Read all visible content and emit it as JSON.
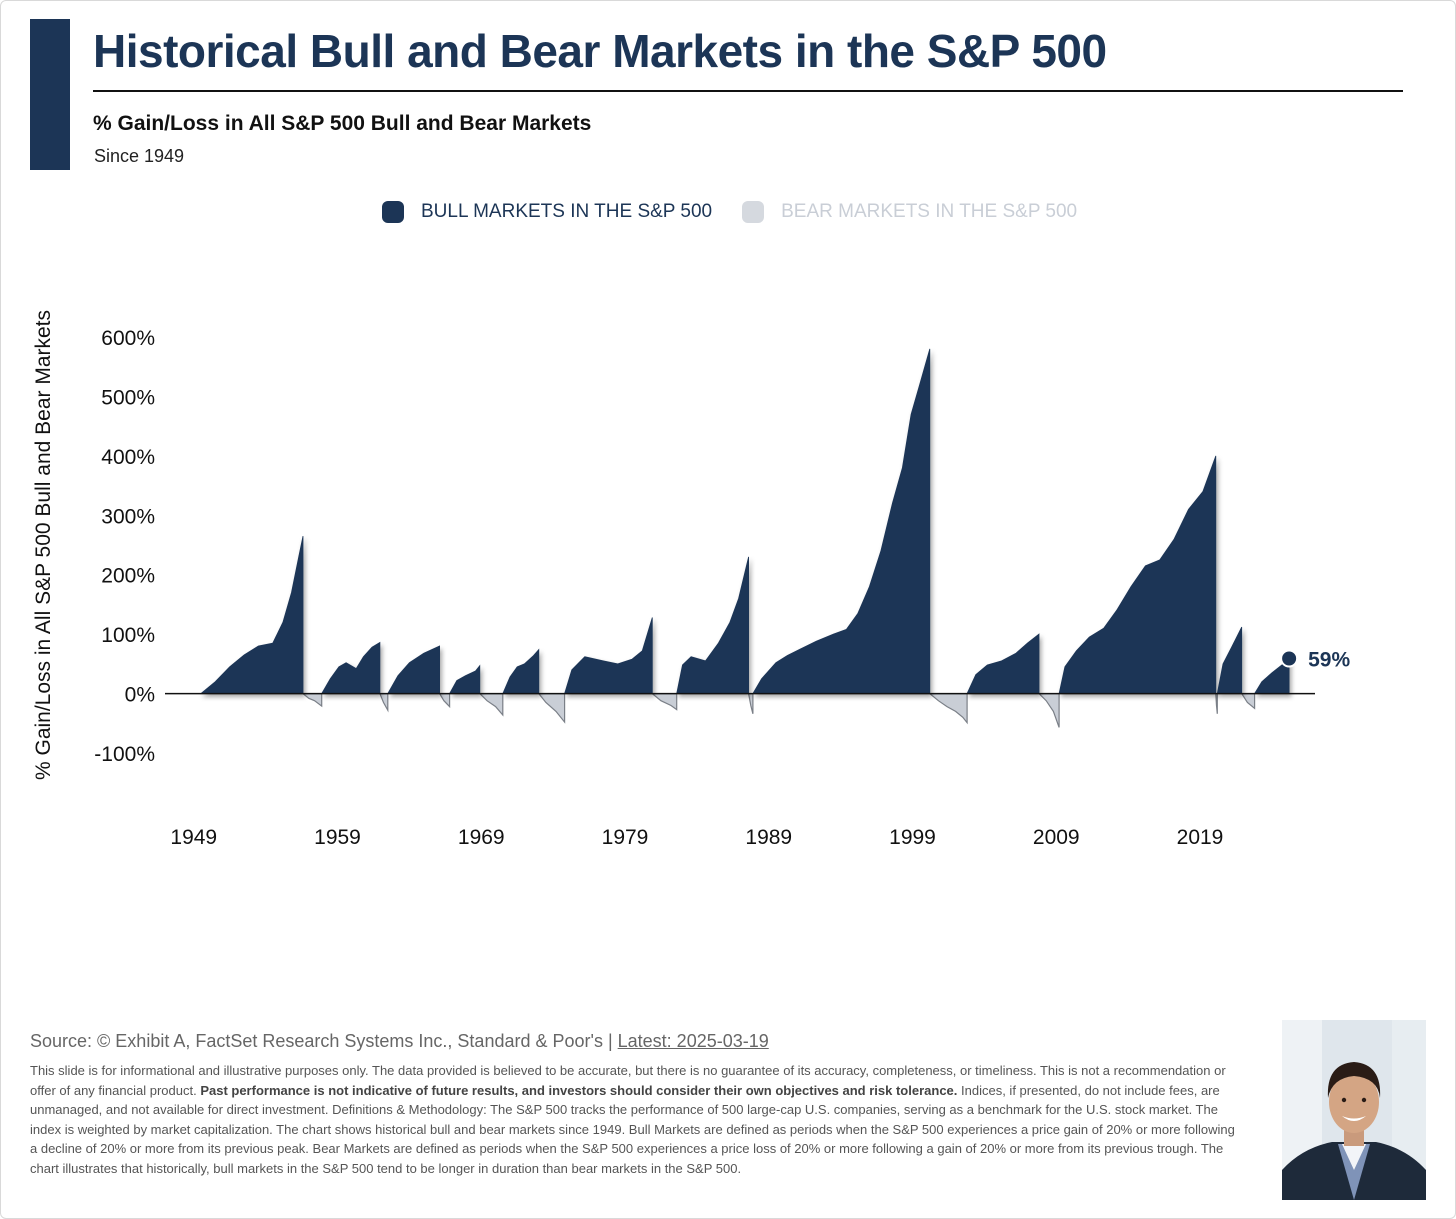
{
  "header": {
    "title": "Historical Bull and Bear Markets in the S&P 500",
    "subtitle": "% Gain/Loss in All S&P 500 Bull and Bear Markets",
    "since": "Since 1949"
  },
  "legend": {
    "bull_label": "BULL MARKETS IN THE S&P 500",
    "bear_label": "BEAR MARKETS IN THE S&P 500"
  },
  "colors": {
    "bull": "#1c3556",
    "bear_fill": "#c9ced6",
    "bear_line": "#7a7f87",
    "accent": "#1c3556"
  },
  "chart_data": {
    "type": "area",
    "title": "% Gain/Loss in All S&P 500 Bull and Bear Markets",
    "ylabel": "% Gain/Loss in All S&P 500 Bull and Bear Markets",
    "xlabel": "",
    "ylim": [
      -100,
      600
    ],
    "yticks": [
      600,
      500,
      400,
      300,
      200,
      100,
      0,
      -100
    ],
    "ytick_labels": [
      "600%",
      "500%",
      "400%",
      "300%",
      "200%",
      "100%",
      "0%",
      "-100%"
    ],
    "xlim": [
      1947,
      2027
    ],
    "xtick_values": [
      1949,
      1959,
      1969,
      1979,
      1989,
      1999,
      2009,
      2019
    ],
    "xtick_labels": [
      "1949",
      "1959",
      "1969",
      "1979",
      "1989",
      "1999",
      "2009",
      "2019"
    ],
    "series": [
      {
        "name": "Bull Markets in the S&P 500",
        "kind": "bull",
        "points": [
          [
            [
              1949.5,
              0
            ],
            [
              1950.5,
              20
            ],
            [
              1951.5,
              45
            ],
            [
              1952.5,
              65
            ],
            [
              1953.5,
              80
            ],
            [
              1954.5,
              85
            ],
            [
              1955.2,
              120
            ],
            [
              1955.8,
              170
            ],
            [
              1956.3,
              230
            ],
            [
              1956.6,
              265
            ],
            [
              1956.6,
              0
            ]
          ],
          [
            [
              1957.9,
              0
            ],
            [
              1958.5,
              25
            ],
            [
              1959.1,
              45
            ],
            [
              1959.6,
              52
            ],
            [
              1960.3,
              42
            ],
            [
              1960.8,
              62
            ],
            [
              1961.4,
              78
            ],
            [
              1961.95,
              86
            ],
            [
              1961.95,
              0
            ]
          ],
          [
            [
              1962.5,
              0
            ],
            [
              1963.2,
              30
            ],
            [
              1964.0,
              52
            ],
            [
              1965.0,
              68
            ],
            [
              1966.1,
              80
            ],
            [
              1966.1,
              0
            ]
          ],
          [
            [
              1966.8,
              0
            ],
            [
              1967.3,
              22
            ],
            [
              1967.9,
              30
            ],
            [
              1968.6,
              38
            ],
            [
              1968.9,
              47
            ],
            [
              1968.9,
              0
            ]
          ],
          [
            [
              1970.5,
              0
            ],
            [
              1971.0,
              28
            ],
            [
              1971.5,
              45
            ],
            [
              1972.0,
              50
            ],
            [
              1972.6,
              63
            ],
            [
              1973.0,
              74
            ],
            [
              1973.0,
              0
            ]
          ],
          [
            [
              1974.8,
              0
            ],
            [
              1975.3,
              40
            ],
            [
              1976.2,
              62
            ],
            [
              1977.5,
              55
            ],
            [
              1978.5,
              50
            ],
            [
              1979.5,
              58
            ],
            [
              1980.2,
              72
            ],
            [
              1980.9,
              128
            ],
            [
              1980.9,
              0
            ]
          ],
          [
            [
              1982.6,
              0
            ],
            [
              1983.0,
              48
            ],
            [
              1983.6,
              62
            ],
            [
              1984.6,
              55
            ],
            [
              1985.5,
              85
            ],
            [
              1986.3,
              120
            ],
            [
              1986.9,
              160
            ],
            [
              1987.6,
              230
            ],
            [
              1987.6,
              0
            ]
          ],
          [
            [
              1987.9,
              0
            ],
            [
              1988.5,
              25
            ],
            [
              1989.5,
              52
            ],
            [
              1990.3,
              64
            ],
            [
              1991.2,
              75
            ],
            [
              1992.3,
              88
            ],
            [
              1993.5,
              100
            ],
            [
              1994.4,
              108
            ],
            [
              1995.2,
              135
            ],
            [
              1996.0,
              180
            ],
            [
              1996.8,
              240
            ],
            [
              1997.6,
              320
            ],
            [
              1998.3,
              380
            ],
            [
              1998.9,
              470
            ],
            [
              1999.5,
              520
            ],
            [
              2000.2,
              580
            ],
            [
              2000.2,
              0
            ]
          ],
          [
            [
              2002.8,
              0
            ],
            [
              2003.4,
              32
            ],
            [
              2004.2,
              48
            ],
            [
              2005.2,
              55
            ],
            [
              2006.2,
              68
            ],
            [
              2007.0,
              85
            ],
            [
              2007.8,
              100
            ],
            [
              2007.8,
              0
            ]
          ],
          [
            [
              2009.2,
              0
            ],
            [
              2009.6,
              45
            ],
            [
              2010.4,
              72
            ],
            [
              2011.3,
              95
            ],
            [
              2012.3,
              110
            ],
            [
              2013.2,
              140
            ],
            [
              2014.2,
              180
            ],
            [
              2015.2,
              215
            ],
            [
              2016.2,
              225
            ],
            [
              2017.2,
              260
            ],
            [
              2018.2,
              310
            ],
            [
              2019.2,
              340
            ],
            [
              2020.1,
              400
            ],
            [
              2020.1,
              0
            ]
          ],
          [
            [
              2020.2,
              0
            ],
            [
              2020.6,
              50
            ],
            [
              2021.2,
              78
            ],
            [
              2021.9,
              112
            ],
            [
              2021.9,
              0
            ]
          ],
          [
            [
              2022.8,
              0
            ],
            [
              2023.3,
              20
            ],
            [
              2024.0,
              35
            ],
            [
              2024.7,
              48
            ],
            [
              2025.2,
              59
            ],
            [
              2025.2,
              0
            ]
          ]
        ]
      },
      {
        "name": "Bear Markets in the S&P 500",
        "kind": "bear",
        "points": [
          [
            [
              1956.6,
              0
            ],
            [
              1957.0,
              -8
            ],
            [
              1957.4,
              -12
            ],
            [
              1957.9,
              -21
            ],
            [
              1957.9,
              0
            ]
          ],
          [
            [
              1961.95,
              0
            ],
            [
              1962.2,
              -15
            ],
            [
              1962.5,
              -28
            ],
            [
              1962.5,
              0
            ]
          ],
          [
            [
              1966.1,
              0
            ],
            [
              1966.4,
              -12
            ],
            [
              1966.8,
              -22
            ],
            [
              1966.8,
              0
            ]
          ],
          [
            [
              1968.9,
              0
            ],
            [
              1969.4,
              -12
            ],
            [
              1970.0,
              -22
            ],
            [
              1970.5,
              -36
            ],
            [
              1970.5,
              0
            ]
          ],
          [
            [
              1973.0,
              0
            ],
            [
              1973.5,
              -15
            ],
            [
              1974.2,
              -30
            ],
            [
              1974.8,
              -48
            ],
            [
              1974.8,
              0
            ]
          ],
          [
            [
              1980.9,
              0
            ],
            [
              1981.5,
              -12
            ],
            [
              1982.2,
              -20
            ],
            [
              1982.6,
              -27
            ],
            [
              1982.6,
              0
            ]
          ],
          [
            [
              1987.6,
              0
            ],
            [
              1987.75,
              -20
            ],
            [
              1987.9,
              -34
            ],
            [
              1987.9,
              0
            ]
          ],
          [
            [
              2000.2,
              0
            ],
            [
              2000.8,
              -12
            ],
            [
              2001.4,
              -22
            ],
            [
              2002.0,
              -30
            ],
            [
              2002.5,
              -40
            ],
            [
              2002.8,
              -49
            ],
            [
              2002.8,
              0
            ]
          ],
          [
            [
              2007.8,
              0
            ],
            [
              2008.3,
              -12
            ],
            [
              2008.8,
              -30
            ],
            [
              2009.2,
              -57
            ],
            [
              2009.2,
              0
            ]
          ],
          [
            [
              2020.1,
              0
            ],
            [
              2020.15,
              -20
            ],
            [
              2020.2,
              -34
            ],
            [
              2020.2,
              0
            ]
          ],
          [
            [
              2021.9,
              0
            ],
            [
              2022.3,
              -15
            ],
            [
              2022.8,
              -25
            ],
            [
              2022.8,
              0
            ]
          ]
        ]
      }
    ],
    "latest_point": {
      "x": 2025.2,
      "y": 59,
      "label": "59%"
    }
  },
  "footer": {
    "source_prefix": "Source: © Exhibit A, FactSet Research Systems Inc., Standard & Poor's | ",
    "source_latest": "Latest: 2025-03-19",
    "disclaimer_part1": "This slide is for informational and illustrative purposes only. The data provided is believed to be accurate, but there is no guarantee of its accuracy, completeness, or timeliness. This is not a recommendation or offer of any financial product. ",
    "disclaimer_bold": "Past performance is not indicative of future results, and investors should consider their own objectives and risk tolerance.",
    "disclaimer_part2": " Indices, if presented, do not include fees, are unmanaged, and not available for direct investment. Definitions & Methodology: The S&P 500 tracks the performance of 500 large-cap U.S. companies, serving as a benchmark for the U.S. stock market. The index is weighted by market capitalization. The chart shows historical bull and bear markets since 1949. Bull Markets are defined as periods when the S&P 500 experiences a price gain of 20% or more following a decline of 20% or more from its previous peak. Bear Markets are defined as periods when the S&P 500 experiences a price loss of 20% or more following a gain of 20% or more from its previous trough. The chart illustrates that historically, bull markets in the S&P 500 tend to be longer in duration than bear markets in the S&P 500."
  }
}
